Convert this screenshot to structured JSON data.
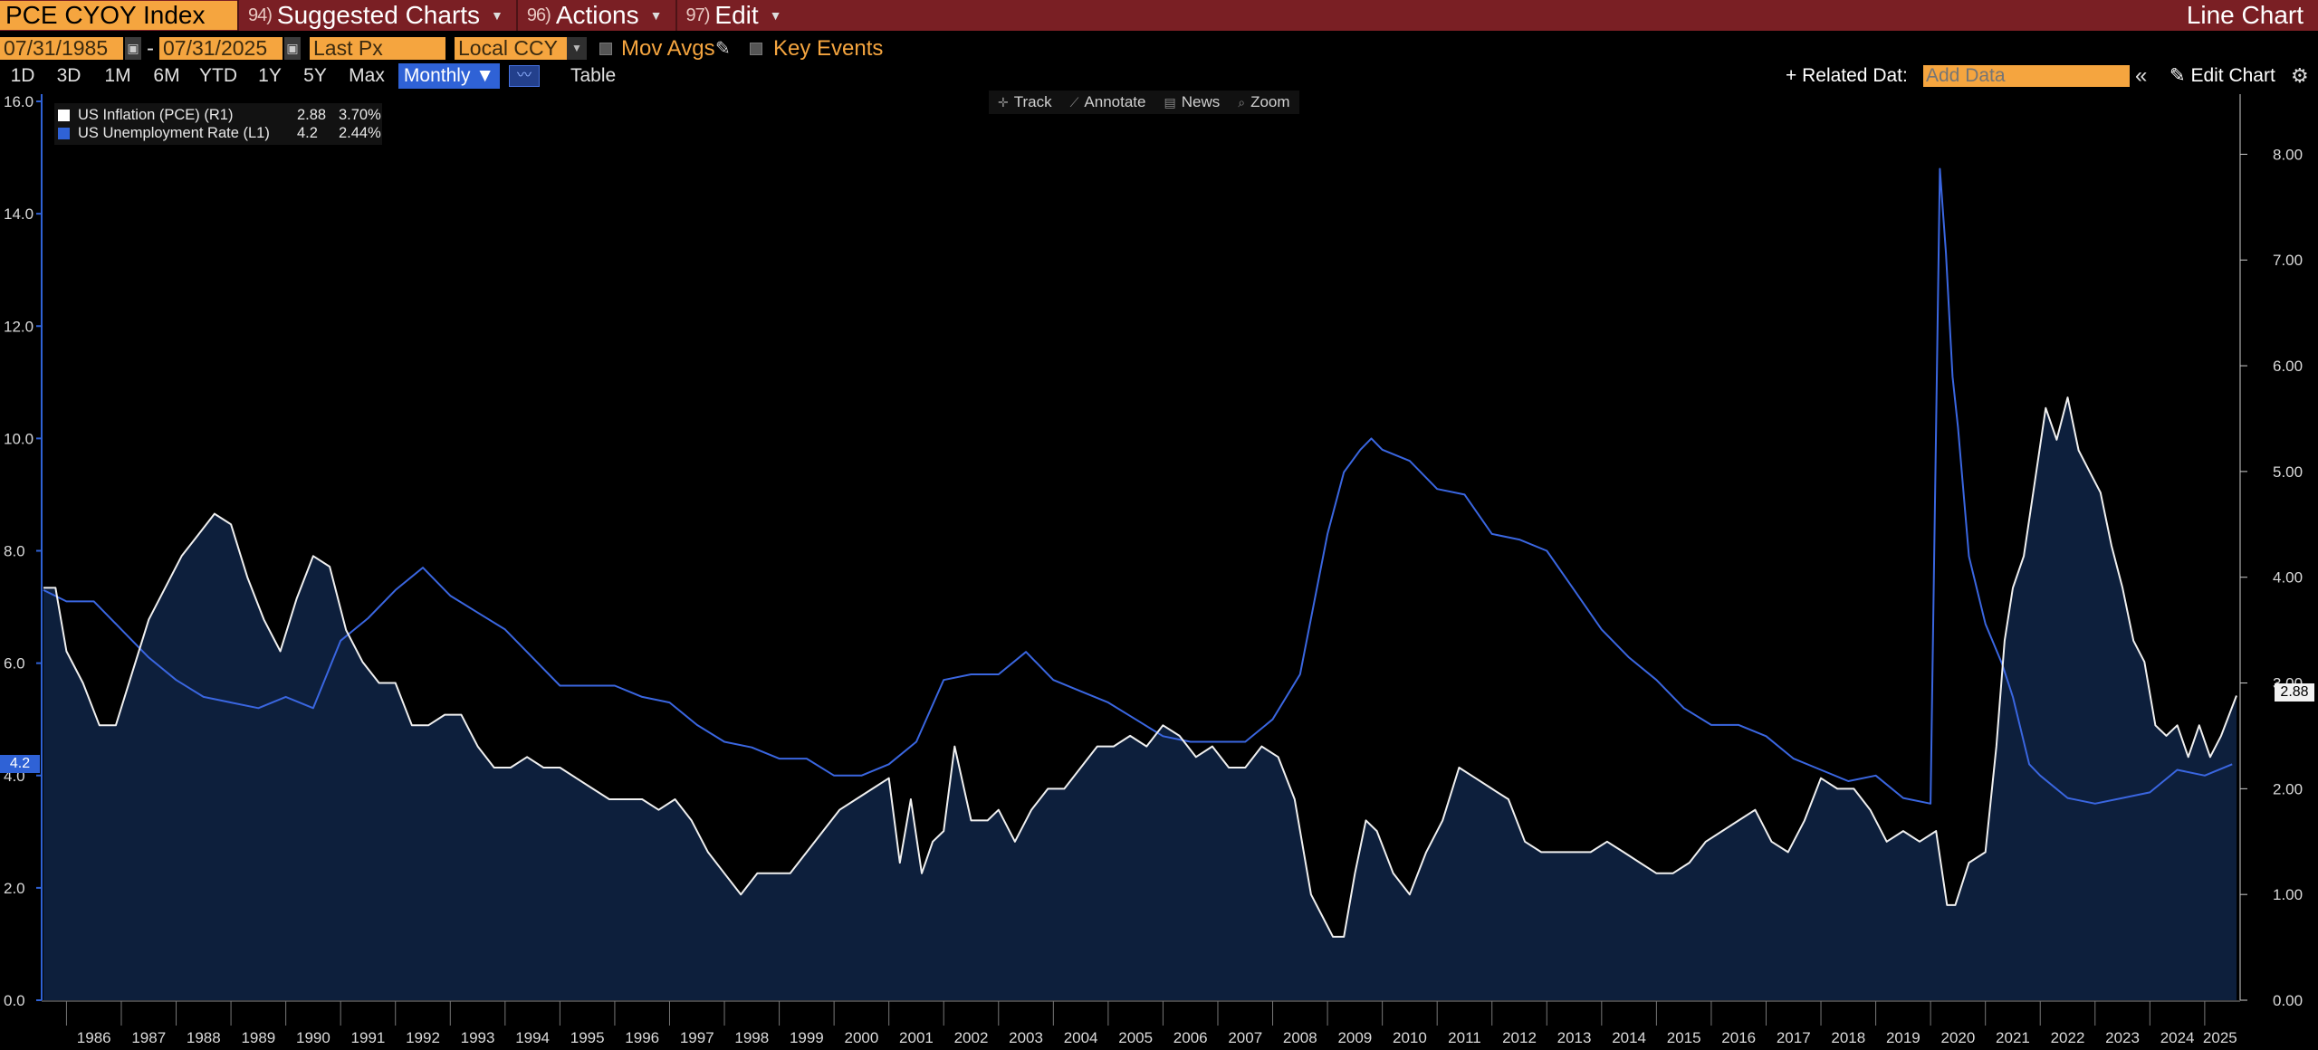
{
  "header": {
    "ticker": "PCE CYOY Index",
    "menus": [
      {
        "num": "94)",
        "label": "Suggested Charts"
      },
      {
        "num": "96)",
        "label": "Actions"
      },
      {
        "num": "97)",
        "label": "Edit"
      }
    ],
    "chart_type": "Line Chart"
  },
  "controls": {
    "start_date": "07/31/1985",
    "date_sep": "-",
    "end_date": "07/31/2025",
    "price_field": "Last Px",
    "currency": "Local CCY",
    "mov_avgs": "Mov Avgs",
    "key_events": "Key Events",
    "ranges": [
      "1D",
      "3D",
      "1M",
      "6M",
      "YTD",
      "1Y",
      "5Y",
      "Max"
    ],
    "periodicity": "Monthly ▼",
    "table": "Table",
    "related_data": "+ Related Dat:",
    "add_data_placeholder": "Add Data",
    "collapse": "«",
    "edit_chart": "Edit Chart"
  },
  "toolbar": {
    "tools": [
      "Track",
      "Annotate",
      "News",
      "Zoom"
    ]
  },
  "legend": [
    {
      "name": "US Inflation (PCE) (R1)",
      "value": "2.88",
      "change": "3.70%",
      "color": "#ffffff"
    },
    {
      "name": "US Unemployment Rate (L1)",
      "value": "4.2",
      "change": "2.44%",
      "color": "#2f62d6"
    }
  ],
  "flags": {
    "left": "4.2",
    "right": "2.88"
  },
  "colors": {
    "title_bar": "#7a1f24",
    "accent_orange": "#f5a53f",
    "unemployment_line": "#3a66e0",
    "inflation_line": "#f0f0f0",
    "area_fill": "#0d1f3c"
  },
  "chart_data": {
    "type": "line",
    "x_range": [
      1985.58,
      2025.58
    ],
    "x_ticks": [
      "1986",
      "1987",
      "1988",
      "1989",
      "1990",
      "1991",
      "1992",
      "1993",
      "1994",
      "1995",
      "1996",
      "1997",
      "1998",
      "1999",
      "2000",
      "2001",
      "2002",
      "2003",
      "2004",
      "2005",
      "2006",
      "2007",
      "2008",
      "2009",
      "2010",
      "2011",
      "2012",
      "2013",
      "2014",
      "2015",
      "2016",
      "2017",
      "2018",
      "2019",
      "2020",
      "2021",
      "2022",
      "2023",
      "2024",
      "2025"
    ],
    "left_axis": {
      "ylim": [
        0,
        16
      ],
      "ticks": [
        "0.0",
        "2.0",
        "4.0",
        "6.0",
        "8.0",
        "10.0",
        "12.0",
        "14.0",
        "16.0"
      ]
    },
    "right_axis": {
      "ylim": [
        0,
        8.5
      ],
      "ticks": [
        "0.00",
        "1.00",
        "2.00",
        "3.00",
        "4.00",
        "5.00",
        "6.00",
        "7.00",
        "8.00"
      ]
    },
    "grid": false,
    "legend_position": "top-left",
    "series": [
      {
        "name": "US Unemployment Rate (L1)",
        "axis": "left",
        "x": [
          1985.58,
          1986.0,
          1986.5,
          1987.0,
          1987.5,
          1988.0,
          1988.5,
          1989.0,
          1989.5,
          1990.0,
          1990.5,
          1991.0,
          1991.5,
          1992.0,
          1992.5,
          1993.0,
          1993.5,
          1994.0,
          1994.5,
          1995.0,
          1995.5,
          1996.0,
          1996.5,
          1997.0,
          1997.5,
          1998.0,
          1998.5,
          1999.0,
          1999.5,
          2000.0,
          2000.5,
          2001.0,
          2001.5,
          2002.0,
          2002.5,
          2003.0,
          2003.5,
          2004.0,
          2004.5,
          2005.0,
          2005.5,
          2006.0,
          2006.5,
          2007.0,
          2007.5,
          2008.0,
          2008.5,
          2009.0,
          2009.3,
          2009.6,
          2009.8,
          2010.0,
          2010.5,
          2011.0,
          2011.5,
          2012.0,
          2012.5,
          2013.0,
          2013.5,
          2014.0,
          2014.5,
          2015.0,
          2015.5,
          2016.0,
          2016.5,
          2017.0,
          2017.5,
          2018.0,
          2018.5,
          2019.0,
          2019.5,
          2020.0,
          2020.17,
          2020.28,
          2020.4,
          2020.5,
          2020.7,
          2021.0,
          2021.3,
          2021.5,
          2021.8,
          2022.0,
          2022.5,
          2023.0,
          2023.5,
          2024.0,
          2024.5,
          2025.0,
          2025.5
        ],
        "y": [
          7.3,
          7.1,
          7.1,
          6.6,
          6.1,
          5.7,
          5.4,
          5.3,
          5.2,
          5.4,
          5.2,
          6.4,
          6.8,
          7.3,
          7.7,
          7.2,
          6.9,
          6.6,
          6.1,
          5.6,
          5.6,
          5.6,
          5.4,
          5.3,
          4.9,
          4.6,
          4.5,
          4.3,
          4.3,
          4.0,
          4.0,
          4.2,
          4.6,
          5.7,
          5.8,
          5.8,
          6.2,
          5.7,
          5.5,
          5.3,
          5.0,
          4.7,
          4.6,
          4.6,
          4.6,
          5.0,
          5.8,
          8.3,
          9.4,
          9.8,
          10.0,
          9.8,
          9.6,
          9.1,
          9.0,
          8.3,
          8.2,
          8.0,
          7.3,
          6.6,
          6.1,
          5.7,
          5.2,
          4.9,
          4.9,
          4.7,
          4.3,
          4.1,
          3.9,
          4.0,
          3.6,
          3.5,
          14.8,
          13.3,
          11.1,
          10.2,
          7.9,
          6.7,
          6.0,
          5.4,
          4.2,
          4.0,
          3.6,
          3.5,
          3.6,
          3.7,
          4.1,
          4.0,
          4.2
        ]
      },
      {
        "name": "US Inflation (PCE) (R1)",
        "axis": "right",
        "x": [
          1985.58,
          1985.8,
          1986.0,
          1986.3,
          1986.6,
          1986.9,
          1987.2,
          1987.5,
          1987.8,
          1988.1,
          1988.4,
          1988.7,
          1989.0,
          1989.3,
          1989.6,
          1989.9,
          1990.2,
          1990.5,
          1990.8,
          1991.1,
          1991.4,
          1991.7,
          1992.0,
          1992.3,
          1992.6,
          1992.9,
          1993.2,
          1993.5,
          1993.8,
          1994.1,
          1994.4,
          1994.7,
          1995.0,
          1995.3,
          1995.6,
          1995.9,
          1996.2,
          1996.5,
          1996.8,
          1997.1,
          1997.4,
          1997.7,
          1998.0,
          1998.3,
          1998.6,
          1998.9,
          1999.2,
          1999.5,
          1999.8,
          2000.1,
          2000.4,
          2000.7,
          2001.0,
          2001.2,
          2001.4,
          2001.6,
          2001.8,
          2002.0,
          2002.2,
          2002.5,
          2002.8,
          2003.0,
          2003.3,
          2003.6,
          2003.9,
          2004.2,
          2004.5,
          2004.8,
          2005.1,
          2005.4,
          2005.7,
          2006.0,
          2006.3,
          2006.6,
          2006.9,
          2007.2,
          2007.5,
          2007.8,
          2008.1,
          2008.4,
          2008.7,
          2008.9,
          2009.1,
          2009.3,
          2009.5,
          2009.7,
          2009.9,
          2010.2,
          2010.5,
          2010.8,
          2011.1,
          2011.4,
          2011.7,
          2012.0,
          2012.3,
          2012.6,
          2012.9,
          2013.2,
          2013.5,
          2013.8,
          2014.1,
          2014.4,
          2014.7,
          2015.0,
          2015.3,
          2015.6,
          2015.9,
          2016.2,
          2016.5,
          2016.8,
          2017.1,
          2017.4,
          2017.7,
          2018.0,
          2018.3,
          2018.6,
          2018.9,
          2019.2,
          2019.5,
          2019.8,
          2020.1,
          2020.3,
          2020.45,
          2020.7,
          2021.0,
          2021.2,
          2021.35,
          2021.5,
          2021.7,
          2021.9,
          2022.1,
          2022.3,
          2022.5,
          2022.7,
          2022.9,
          2023.1,
          2023.3,
          2023.5,
          2023.7,
          2023.9,
          2024.1,
          2024.3,
          2024.5,
          2024.7,
          2024.9,
          2025.1,
          2025.3,
          2025.58
        ],
        "y": [
          3.9,
          3.9,
          3.3,
          3.0,
          2.6,
          2.6,
          3.1,
          3.6,
          3.9,
          4.2,
          4.4,
          4.6,
          4.5,
          4.0,
          3.6,
          3.3,
          3.8,
          4.2,
          4.1,
          3.5,
          3.2,
          3.0,
          3.0,
          2.6,
          2.6,
          2.7,
          2.7,
          2.4,
          2.2,
          2.2,
          2.3,
          2.2,
          2.2,
          2.1,
          2.0,
          1.9,
          1.9,
          1.9,
          1.8,
          1.9,
          1.7,
          1.4,
          1.2,
          1.0,
          1.2,
          1.2,
          1.2,
          1.4,
          1.6,
          1.8,
          1.9,
          2.0,
          2.1,
          1.3,
          1.9,
          1.2,
          1.5,
          1.6,
          2.4,
          1.7,
          1.7,
          1.8,
          1.5,
          1.8,
          2.0,
          2.0,
          2.2,
          2.4,
          2.4,
          2.5,
          2.4,
          2.6,
          2.5,
          2.3,
          2.4,
          2.2,
          2.2,
          2.4,
          2.3,
          1.9,
          1.0,
          0.8,
          0.6,
          0.6,
          1.2,
          1.7,
          1.6,
          1.2,
          1.0,
          1.4,
          1.7,
          2.2,
          2.1,
          2.0,
          1.9,
          1.5,
          1.4,
          1.4,
          1.4,
          1.4,
          1.5,
          1.4,
          1.3,
          1.2,
          1.2,
          1.3,
          1.5,
          1.6,
          1.7,
          1.8,
          1.5,
          1.4,
          1.7,
          2.1,
          2.0,
          2.0,
          1.8,
          1.5,
          1.6,
          1.5,
          1.6,
          0.9,
          0.9,
          1.3,
          1.4,
          2.4,
          3.4,
          3.9,
          4.2,
          4.9,
          5.6,
          5.3,
          5.7,
          5.2,
          5.0,
          4.8,
          4.3,
          3.9,
          3.4,
          3.2,
          2.6,
          2.5,
          2.6,
          2.3,
          2.6,
          2.3,
          2.5,
          2.88
        ]
      }
    ]
  }
}
